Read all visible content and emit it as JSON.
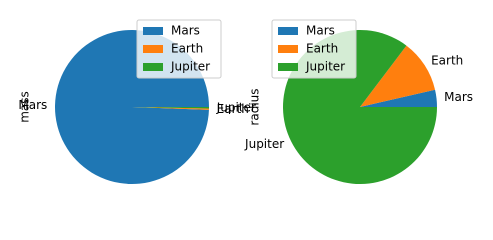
{
  "chart_data": [
    {
      "type": "pie",
      "ylabel": "mass",
      "categories": [
        "Mars",
        "Earth",
        "Jupiter"
      ],
      "values": [
        99.4,
        0.3,
        0.3
      ],
      "colors": [
        "#1f77b4",
        "#ff7f0e",
        "#2ca02c"
      ],
      "legend": "upper right"
    },
    {
      "type": "pie",
      "ylabel": "radius",
      "categories": [
        "Mars",
        "Earth",
        "Jupiter"
      ],
      "values": [
        3.6,
        11.1,
        85.3
      ],
      "colors": [
        "#1f77b4",
        "#ff7f0e",
        "#2ca02c"
      ],
      "legend": "upper left"
    }
  ]
}
